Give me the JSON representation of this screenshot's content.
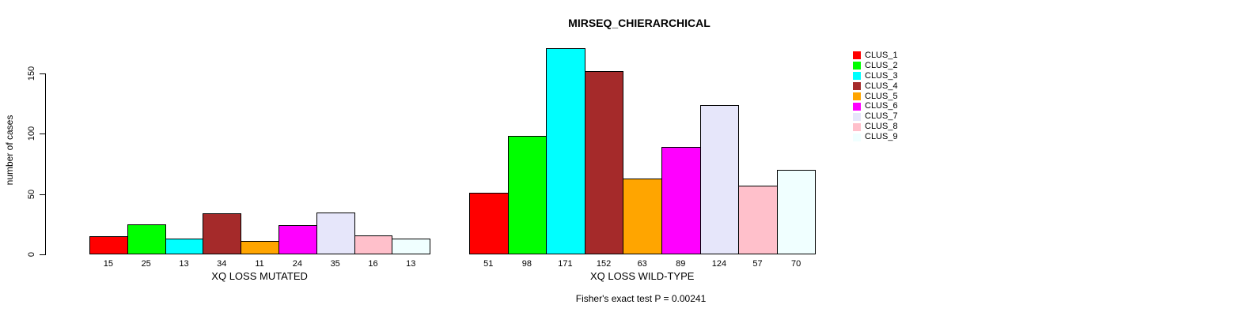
{
  "chart_data": {
    "type": "bar",
    "title": "MIRSEQ_CHIERARCHICAL",
    "ylabel": "number of cases",
    "ylim": [
      0,
      175
    ],
    "yticks": [
      0,
      50,
      100,
      150
    ],
    "grid": false,
    "legend_position": "top-right",
    "clusters": [
      "CLUS_1",
      "CLUS_2",
      "CLUS_3",
      "CLUS_4",
      "CLUS_5",
      "CLUS_6",
      "CLUS_7",
      "CLUS_8",
      "CLUS_9"
    ],
    "colors": [
      "#FF0000",
      "#00FF00",
      "#00FFFF",
      "#A52A2A",
      "#FFA500",
      "#FF00FF",
      "#E6E6FA",
      "#FFC0CB",
      "#F0FFFF"
    ],
    "bar_border_color": "#000000",
    "groups": [
      {
        "label": "XQ LOSS MUTATED",
        "values": [
          15,
          25,
          13,
          34,
          11,
          24,
          35,
          16,
          13
        ]
      },
      {
        "label": "XQ LOSS WILD-TYPE",
        "values": [
          51,
          98,
          171,
          152,
          63,
          89,
          124,
          57,
          70
        ]
      }
    ],
    "annotation": "Fisher's exact test P = 0.00241"
  }
}
